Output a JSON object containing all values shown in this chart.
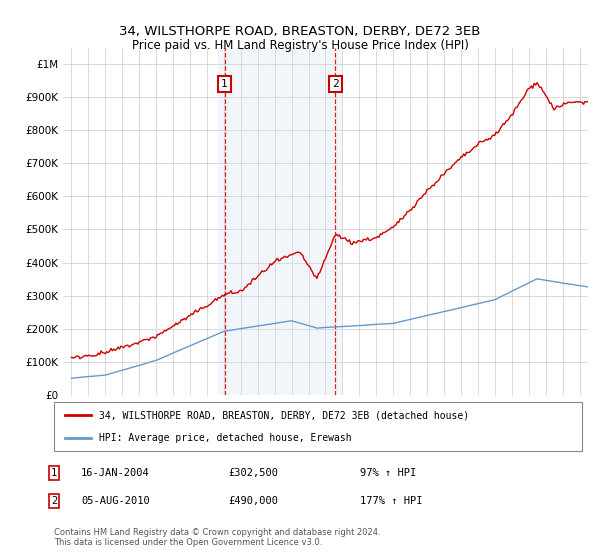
{
  "title": "34, WILSTHORPE ROAD, BREASTON, DERBY, DE72 3EB",
  "subtitle": "Price paid vs. HM Land Registry's House Price Index (HPI)",
  "legend_label_red": "34, WILSTHORPE ROAD, BREASTON, DERBY, DE72 3EB (detached house)",
  "legend_label_blue": "HPI: Average price, detached house, Erewash",
  "footnote": "Contains HM Land Registry data © Crown copyright and database right 2024.\nThis data is licensed under the Open Government Licence v3.0.",
  "annotation1_label": "1",
  "annotation1_date": "16-JAN-2004",
  "annotation1_price": "£302,500",
  "annotation1_hpi": "97% ↑ HPI",
  "annotation2_label": "2",
  "annotation2_date": "05-AUG-2010",
  "annotation2_price": "£490,000",
  "annotation2_hpi": "177% ↑ HPI",
  "purchase1_year": 2004.04,
  "purchase1_value": 302500,
  "purchase2_year": 2010.59,
  "purchase2_value": 490000,
  "red_color": "#cc0000",
  "blue_color": "#6699cc",
  "annotation_box_color": "#cc0000",
  "shading_color": "#ccddf0",
  "background_color": "#ffffff",
  "grid_color": "#cccccc",
  "ylim": [
    0,
    1050000
  ],
  "xlim_start": 1994.5,
  "xlim_end": 2025.5
}
